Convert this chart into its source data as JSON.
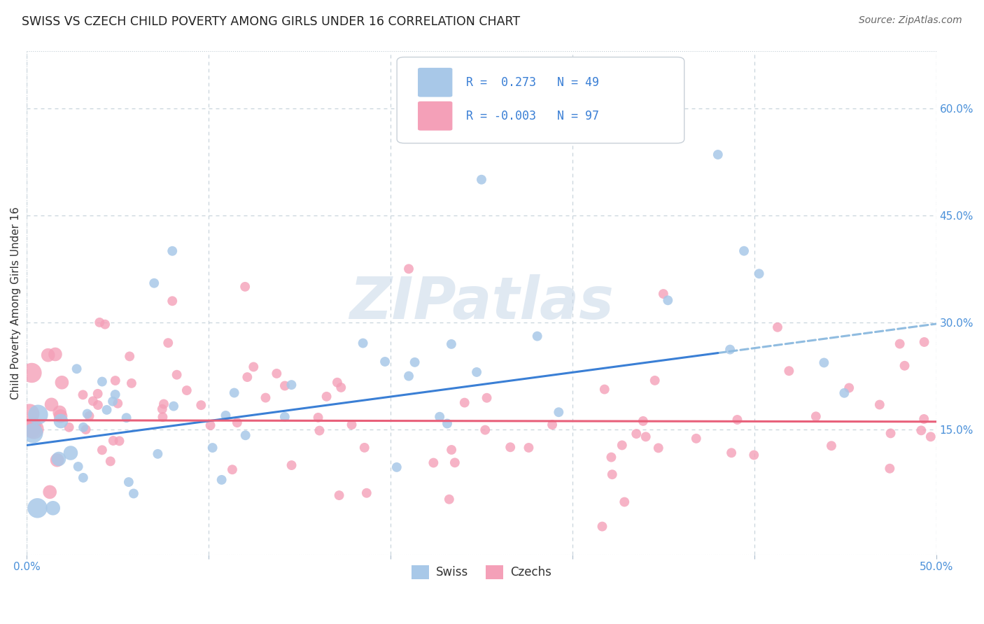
{
  "title": "SWISS VS CZECH CHILD POVERTY AMONG GIRLS UNDER 16 CORRELATION CHART",
  "source": "Source: ZipAtlas.com",
  "ylabel": "Child Poverty Among Girls Under 16",
  "xlim": [
    0.0,
    0.5
  ],
  "ylim": [
    -0.025,
    0.68
  ],
  "yticks": [
    0.15,
    0.3,
    0.45,
    0.6
  ],
  "yticklabels": [
    "15.0%",
    "30.0%",
    "45.0%",
    "60.0%"
  ],
  "xtick_vals": [
    0.0,
    0.1,
    0.2,
    0.3,
    0.4,
    0.5
  ],
  "xticklabels": [
    "0.0%",
    "",
    "",
    "",
    "",
    "50.0%"
  ],
  "swiss_R": 0.273,
  "swiss_N": 49,
  "czech_R": -0.003,
  "czech_N": 97,
  "swiss_color": "#a8c8e8",
  "czech_color": "#f4a0b8",
  "swiss_line_color": "#3a7fd5",
  "czech_line_color": "#e8607a",
  "swiss_line_dashed_color": "#90bce0",
  "tick_label_color": "#4a90d9",
  "background_color": "#ffffff",
  "grid_color": "#c8d4dc",
  "border_color": "#c0ccd4",
  "watermark": "ZIPatlas",
  "swiss_intercept": 0.128,
  "swiss_slope": 0.34,
  "czech_intercept": 0.163,
  "czech_slope": -0.004,
  "swiss_line_solid_end": 0.38,
  "dot_size_small": 100,
  "dot_size_large": 420
}
